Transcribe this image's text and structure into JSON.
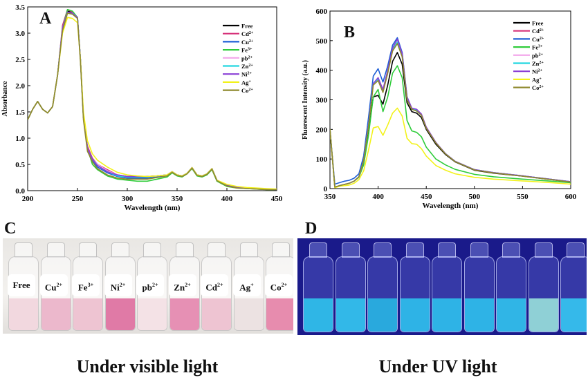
{
  "panels": {
    "a_letter": "A",
    "b_letter": "B",
    "c_letter": "C",
    "d_letter": "D"
  },
  "captions": {
    "visible": "Under visible light",
    "uv": "Under UV light"
  },
  "vials_c": [
    {
      "ion": "Free",
      "sup": ""
    },
    {
      "ion": "Cu",
      "sup": "2+"
    },
    {
      "ion": "Fe",
      "sup": "3+"
    },
    {
      "ion": "Ni",
      "sup": "2+"
    },
    {
      "ion": "pb",
      "sup": "2+"
    },
    {
      "ion": "Zn",
      "sup": "2+"
    },
    {
      "ion": "Cd",
      "sup": "2+"
    },
    {
      "ion": "Ag",
      "sup": "+"
    },
    {
      "ion": "Co",
      "sup": "2+"
    }
  ],
  "vial_colors_c": [
    "#f2d8df",
    "#ecb8cc",
    "#eec4d2",
    "#e07aa6",
    "#f4e2e6",
    "#e690b4",
    "#eec4d2",
    "#ece2e2",
    "#e78cae"
  ],
  "vial_colors_d": [
    "#2fb6e6",
    "#32b8e8",
    "#29a9dd",
    "#2eb3e6",
    "#2eb3e6",
    "#2eb3e6",
    "#30b5e6",
    "#8fd0d6",
    "#35b9ea"
  ],
  "chart_data": [
    {
      "type": "line",
      "xlabel": "Wavelength (nm)",
      "ylabel": "Absorbance",
      "xlim": [
        200,
        450
      ],
      "ylim": [
        0,
        3.5
      ],
      "xticks": [
        200,
        250,
        300,
        350,
        400,
        450
      ],
      "yticks": [
        0.0,
        0.5,
        1.0,
        1.5,
        2.0,
        2.5,
        3.0,
        3.5
      ],
      "legend_position": "top-right",
      "x": [
        200,
        205,
        210,
        215,
        220,
        225,
        230,
        235,
        240,
        245,
        250,
        253,
        256,
        260,
        265,
        270,
        280,
        290,
        300,
        310,
        320,
        330,
        340,
        345,
        350,
        355,
        360,
        365,
        370,
        375,
        380,
        385,
        390,
        400,
        410,
        420,
        430,
        440,
        450
      ],
      "series": [
        {
          "name": "Free",
          "sup": "",
          "color": "#000000",
          "values": [
            1.35,
            1.55,
            1.7,
            1.55,
            1.48,
            1.6,
            2.2,
            3.1,
            3.42,
            3.4,
            3.3,
            2.5,
            1.4,
            0.8,
            0.6,
            0.5,
            0.38,
            0.3,
            0.27,
            0.27,
            0.27,
            0.28,
            0.3,
            0.36,
            0.3,
            0.28,
            0.33,
            0.44,
            0.3,
            0.28,
            0.32,
            0.42,
            0.2,
            0.1,
            0.06,
            0.05,
            0.04,
            0.03,
            0.02
          ]
        },
        {
          "name": "Cd",
          "sup": "2+",
          "color": "#d6337a",
          "values": [
            1.35,
            1.55,
            1.7,
            1.55,
            1.48,
            1.6,
            2.2,
            3.15,
            3.45,
            3.4,
            3.3,
            2.5,
            1.4,
            0.85,
            0.62,
            0.5,
            0.4,
            0.3,
            0.26,
            0.26,
            0.26,
            0.28,
            0.3,
            0.36,
            0.3,
            0.28,
            0.33,
            0.44,
            0.3,
            0.28,
            0.32,
            0.42,
            0.2,
            0.1,
            0.06,
            0.05,
            0.04,
            0.03,
            0.02
          ]
        },
        {
          "name": "Cu",
          "sup": "2+",
          "color": "#1f5fd6",
          "values": [
            1.35,
            1.55,
            1.7,
            1.55,
            1.48,
            1.6,
            2.2,
            3.1,
            3.4,
            3.38,
            3.3,
            2.5,
            1.4,
            0.8,
            0.58,
            0.45,
            0.34,
            0.27,
            0.24,
            0.24,
            0.24,
            0.26,
            0.29,
            0.35,
            0.3,
            0.28,
            0.33,
            0.43,
            0.3,
            0.28,
            0.32,
            0.42,
            0.2,
            0.1,
            0.06,
            0.05,
            0.04,
            0.03,
            0.02
          ]
        },
        {
          "name": "Fe",
          "sup": "3+",
          "color": "#2fcc3a",
          "values": [
            1.35,
            1.55,
            1.7,
            1.55,
            1.48,
            1.6,
            2.2,
            3.1,
            3.45,
            3.42,
            3.3,
            2.5,
            1.4,
            0.8,
            0.5,
            0.4,
            0.28,
            0.22,
            0.2,
            0.18,
            0.18,
            0.22,
            0.26,
            0.34,
            0.28,
            0.26,
            0.32,
            0.42,
            0.28,
            0.26,
            0.3,
            0.4,
            0.18,
            0.08,
            0.05,
            0.04,
            0.03,
            0.02,
            0.02
          ]
        },
        {
          "name": "pb",
          "sup": "2+",
          "color": "#f2a6ea",
          "values": [
            1.35,
            1.55,
            1.7,
            1.55,
            1.48,
            1.6,
            2.2,
            3.1,
            3.4,
            3.38,
            3.3,
            2.5,
            1.4,
            0.8,
            0.6,
            0.5,
            0.38,
            0.3,
            0.26,
            0.26,
            0.26,
            0.28,
            0.3,
            0.36,
            0.3,
            0.28,
            0.33,
            0.44,
            0.3,
            0.28,
            0.32,
            0.42,
            0.2,
            0.1,
            0.06,
            0.05,
            0.04,
            0.03,
            0.02
          ]
        },
        {
          "name": "Zn",
          "sup": "2+",
          "color": "#22d6e0",
          "values": [
            1.35,
            1.55,
            1.7,
            1.55,
            1.48,
            1.6,
            2.2,
            3.1,
            3.4,
            3.38,
            3.3,
            2.5,
            1.4,
            0.8,
            0.6,
            0.48,
            0.36,
            0.28,
            0.26,
            0.26,
            0.26,
            0.28,
            0.3,
            0.36,
            0.3,
            0.28,
            0.33,
            0.44,
            0.3,
            0.28,
            0.32,
            0.42,
            0.2,
            0.1,
            0.06,
            0.05,
            0.04,
            0.03,
            0.02
          ]
        },
        {
          "name": "Ni",
          "sup": "2+",
          "color": "#8a3fd6",
          "values": [
            1.35,
            1.55,
            1.7,
            1.55,
            1.48,
            1.6,
            2.2,
            3.1,
            3.4,
            3.38,
            3.3,
            2.5,
            1.4,
            0.8,
            0.6,
            0.48,
            0.36,
            0.3,
            0.27,
            0.27,
            0.27,
            0.28,
            0.3,
            0.36,
            0.3,
            0.28,
            0.33,
            0.44,
            0.3,
            0.28,
            0.32,
            0.42,
            0.2,
            0.1,
            0.06,
            0.05,
            0.04,
            0.03,
            0.02
          ]
        },
        {
          "name": "Ag",
          "sup": "+",
          "color": "#f2f21a",
          "values": [
            1.35,
            1.55,
            1.7,
            1.55,
            1.48,
            1.6,
            2.2,
            3.0,
            3.3,
            3.28,
            3.2,
            2.5,
            1.5,
            0.95,
            0.7,
            0.58,
            0.45,
            0.35,
            0.3,
            0.28,
            0.27,
            0.28,
            0.3,
            0.36,
            0.3,
            0.28,
            0.33,
            0.44,
            0.3,
            0.28,
            0.32,
            0.42,
            0.2,
            0.12,
            0.08,
            0.06,
            0.05,
            0.04,
            0.03
          ]
        },
        {
          "name": "Co",
          "sup": "2+",
          "color": "#8f8a2e",
          "values": [
            1.35,
            1.55,
            1.7,
            1.55,
            1.48,
            1.6,
            2.2,
            3.05,
            3.38,
            3.36,
            3.28,
            2.45,
            1.35,
            0.75,
            0.55,
            0.42,
            0.3,
            0.24,
            0.22,
            0.22,
            0.22,
            0.25,
            0.28,
            0.35,
            0.29,
            0.27,
            0.32,
            0.43,
            0.29,
            0.27,
            0.31,
            0.41,
            0.19,
            0.09,
            0.05,
            0.04,
            0.03,
            0.02,
            0.02
          ]
        }
      ]
    },
    {
      "type": "line",
      "xlabel": "Wavelength (nm)",
      "ylabel": "Fluorescent Intensity (a.u.)",
      "xlim": [
        350,
        600
      ],
      "ylim": [
        0,
        600
      ],
      "xticks": [
        350,
        400,
        450,
        500,
        550,
        600
      ],
      "yticks": [
        0,
        100,
        200,
        300,
        400,
        500,
        600
      ],
      "legend_position": "top-right",
      "x": [
        350,
        355,
        360,
        365,
        370,
        375,
        380,
        385,
        390,
        395,
        400,
        405,
        410,
        415,
        420,
        425,
        430,
        435,
        440,
        445,
        450,
        460,
        470,
        480,
        500,
        520,
        550,
        580,
        600
      ],
      "series": [
        {
          "name": "Free",
          "sup": "",
          "color": "#000000",
          "values": [
            200,
            5,
            10,
            14,
            18,
            25,
            40,
            90,
            200,
            310,
            315,
            285,
            350,
            430,
            460,
            420,
            290,
            260,
            255,
            240,
            200,
            150,
            115,
            90,
            62,
            52,
            42,
            30,
            22
          ]
        },
        {
          "name": "Cd",
          "sup": "2+",
          "color": "#d6337a",
          "values": [
            200,
            5,
            10,
            14,
            18,
            25,
            40,
            95,
            215,
            355,
            370,
            330,
            395,
            470,
            495,
            450,
            305,
            270,
            265,
            250,
            205,
            155,
            118,
            92,
            64,
            54,
            43,
            31,
            23
          ]
        },
        {
          "name": "Cu",
          "sup": "2+",
          "color": "#1f5fd6",
          "values": [
            200,
            15,
            20,
            25,
            28,
            35,
            50,
            110,
            240,
            380,
            405,
            360,
            415,
            485,
            510,
            460,
            310,
            270,
            262,
            248,
            205,
            155,
            118,
            92,
            64,
            54,
            43,
            31,
            23
          ]
        },
        {
          "name": "Fe",
          "sup": "3+",
          "color": "#2fcc3a",
          "values": [
            200,
            5,
            10,
            14,
            18,
            25,
            38,
            80,
            180,
            310,
            335,
            260,
            310,
            390,
            415,
            375,
            230,
            195,
            190,
            175,
            140,
            100,
            80,
            65,
            48,
            40,
            32,
            25,
            20
          ]
        },
        {
          "name": "pb",
          "sup": "2+",
          "color": "#f2a6ea",
          "values": [
            200,
            5,
            10,
            14,
            18,
            25,
            40,
            95,
            215,
            355,
            370,
            330,
            395,
            470,
            495,
            450,
            305,
            270,
            265,
            250,
            205,
            155,
            118,
            92,
            64,
            54,
            43,
            31,
            23
          ]
        },
        {
          "name": "Zn",
          "sup": "2+",
          "color": "#22d6e0",
          "values": [
            200,
            5,
            10,
            14,
            18,
            25,
            40,
            95,
            215,
            355,
            370,
            330,
            395,
            470,
            495,
            450,
            305,
            270,
            265,
            250,
            205,
            155,
            118,
            92,
            64,
            54,
            43,
            31,
            23
          ]
        },
        {
          "name": "Ni",
          "sup": "2+",
          "color": "#8a3fd6",
          "values": [
            200,
            5,
            10,
            14,
            18,
            25,
            40,
            95,
            215,
            355,
            375,
            335,
            400,
            475,
            505,
            455,
            310,
            272,
            268,
            252,
            208,
            156,
            118,
            92,
            64,
            54,
            43,
            31,
            23
          ]
        },
        {
          "name": "Ag",
          "sup": "+",
          "color": "#f2f21a",
          "values": [
            200,
            3,
            8,
            10,
            12,
            18,
            30,
            60,
            130,
            205,
            210,
            180,
            215,
            255,
            272,
            245,
            170,
            152,
            150,
            135,
            110,
            78,
            62,
            50,
            38,
            32,
            26,
            20,
            15
          ]
        },
        {
          "name": "Co",
          "sup": "2+",
          "color": "#8f8a2e",
          "values": [
            200,
            5,
            10,
            14,
            18,
            25,
            40,
            95,
            210,
            350,
            365,
            325,
            390,
            465,
            490,
            445,
            300,
            268,
            262,
            248,
            204,
            154,
            117,
            91,
            63,
            53,
            42,
            30,
            22
          ]
        }
      ]
    }
  ]
}
